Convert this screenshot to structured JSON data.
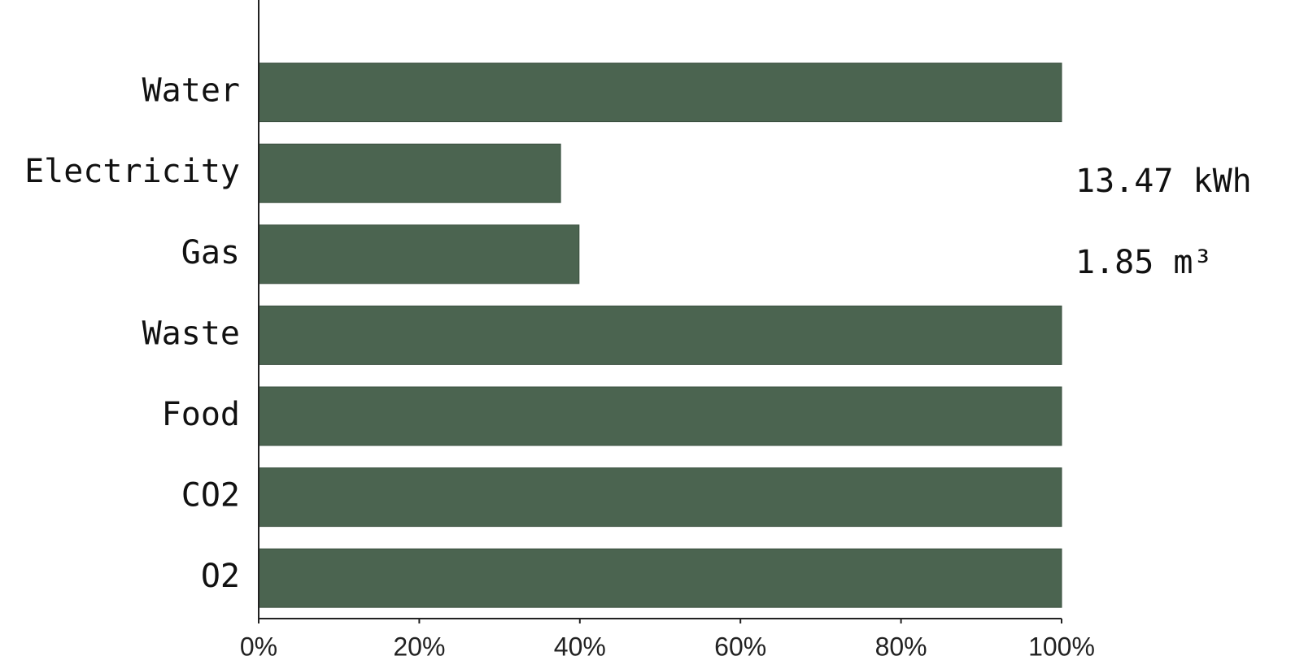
{
  "chart_data": {
    "type": "bar",
    "orientation": "horizontal",
    "categories": [
      "Water",
      "Electricity",
      "Gas",
      "Waste",
      "Food",
      "CO2",
      "O2"
    ],
    "values": [
      100,
      37.6,
      39.9,
      100,
      100,
      100,
      100
    ],
    "color": "#4b6450",
    "xlim": [
      0,
      100
    ],
    "xticks": [
      {
        "value": 0,
        "label": "0%"
      },
      {
        "value": 20,
        "label": "20%"
      },
      {
        "value": 40,
        "label": "40%"
      },
      {
        "value": 60,
        "label": "60%"
      },
      {
        "value": 80,
        "label": "80%"
      },
      {
        "value": 100,
        "label": "100%"
      }
    ],
    "annotations": [
      {
        "category": "Electricity",
        "text": "13.47 kWh"
      },
      {
        "category": "Gas",
        "text": "1.85 m³"
      }
    ],
    "grid": false
  }
}
